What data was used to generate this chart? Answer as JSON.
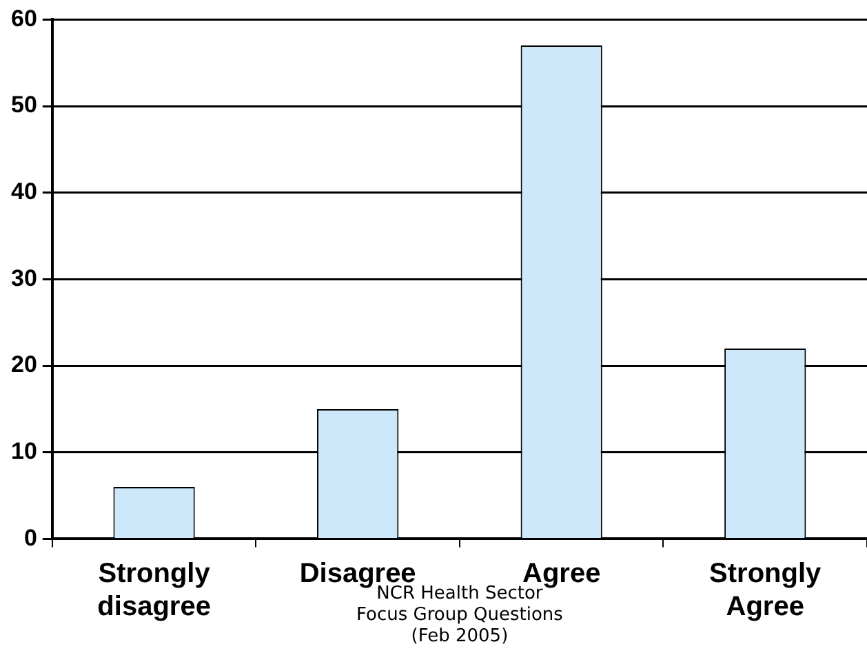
{
  "chart_data": {
    "type": "bar",
    "xlabel": "NCR Health Sector\nFocus Group Questions\n(Feb 2005)",
    "categories": [
      "Strongly disagree",
      "Disagree",
      "Agree",
      "Strongly Agree"
    ],
    "values": [
      6,
      15,
      57,
      22
    ],
    "color": "#cce8fa",
    "ylim": [
      0,
      60
    ],
    "yticks": [
      0,
      10,
      20,
      30,
      40,
      50,
      60
    ],
    "grid": "y",
    "legend": false
  }
}
